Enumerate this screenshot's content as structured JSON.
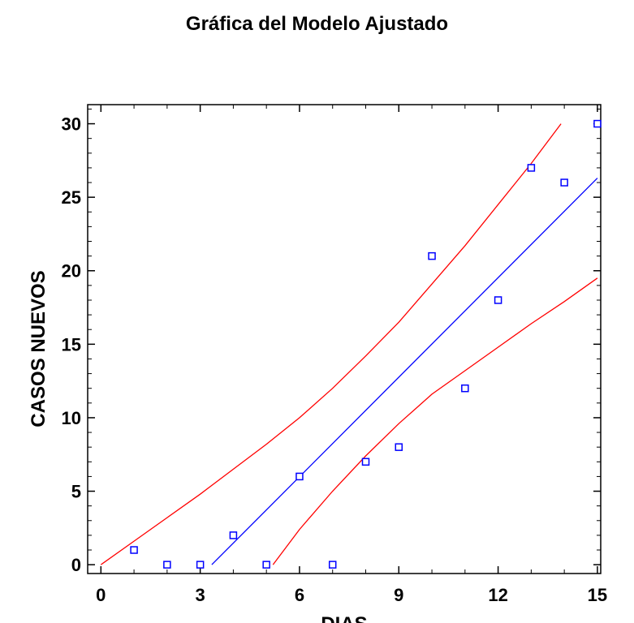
{
  "chart_data": {
    "type": "scatter",
    "title": "Gráfica del Modelo Ajustado",
    "xlabel": "DIAS",
    "ylabel": "CASOS NUEVOS",
    "xlim": [
      -0.4,
      15.1
    ],
    "ylim": [
      -0.6,
      31.3
    ],
    "xticks": [
      0,
      3,
      6,
      9,
      12,
      15
    ],
    "yticks": [
      0,
      5,
      10,
      15,
      20,
      25,
      30
    ],
    "grid": false,
    "legend": "none",
    "colors": {
      "points": "#0000ff",
      "fit": "#0000ff",
      "limits": "#ff0000",
      "axis": "#000000"
    },
    "observations": {
      "x": [
        1,
        2,
        3,
        4,
        5,
        6,
        7,
        8,
        9,
        10,
        11,
        12,
        13,
        14,
        15
      ],
      "y": [
        1,
        0,
        0,
        2,
        0,
        6,
        0,
        7,
        8,
        21,
        12,
        18,
        27,
        26,
        30
      ]
    },
    "fitted_line": {
      "x": [
        3.35,
        15
      ],
      "y": [
        0,
        26.3
      ]
    },
    "upper_limit": {
      "x": [
        0,
        1,
        2,
        3,
        4,
        5,
        6,
        7,
        8,
        9,
        10,
        11,
        12,
        13,
        13.9
      ],
      "y": [
        0,
        1.6,
        3.2,
        4.8,
        6.5,
        8.2,
        10.0,
        12.0,
        14.2,
        16.5,
        19.1,
        21.7,
        24.5,
        27.3,
        30.0
      ]
    },
    "lower_limit": {
      "x": [
        5.2,
        6,
        7,
        8,
        9,
        10,
        11,
        12,
        13,
        14,
        15
      ],
      "y": [
        0,
        2.4,
        5.0,
        7.4,
        9.6,
        11.6,
        13.2,
        14.8,
        16.4,
        17.9,
        19.5
      ]
    }
  }
}
